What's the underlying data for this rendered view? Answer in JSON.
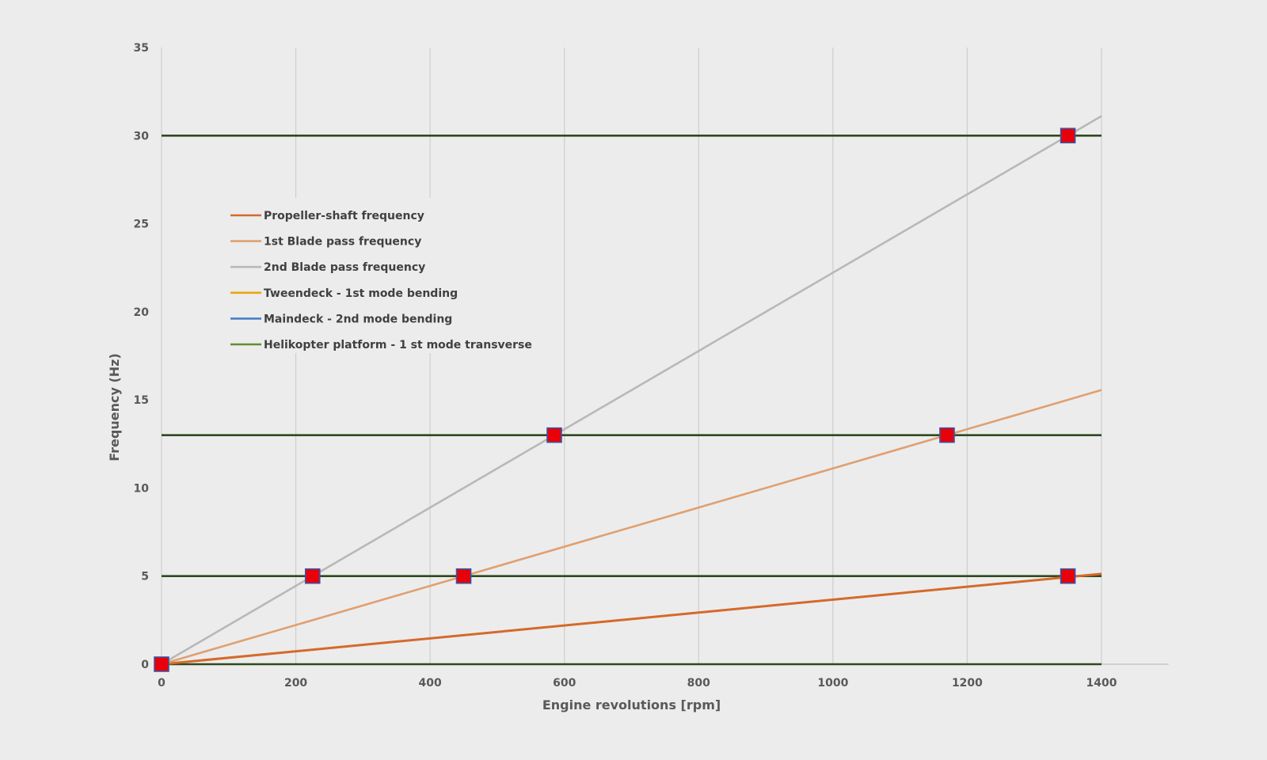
{
  "chart_data": {
    "type": "line",
    "title": "",
    "xlabel": "Engine revolutions [rpm]",
    "ylabel": "Frequency (Hz)",
    "xlim": [
      0,
      1400
    ],
    "xaxis_line_max": 1500,
    "ylim": [
      0,
      35
    ],
    "xticks": [
      0,
      200,
      400,
      600,
      800,
      1000,
      1200,
      1400
    ],
    "yticks": [
      0,
      5,
      10,
      15,
      20,
      25,
      30,
      35
    ],
    "grid": "vertical",
    "legend_position": "upper-left",
    "series": [
      {
        "name": "Propeller-shaft frequency",
        "color": "#d46a2a",
        "x": [
          0,
          1400
        ],
        "y": [
          0,
          5.13
        ]
      },
      {
        "name": "1st Blade pass frequency",
        "color": "#e0a070",
        "x": [
          0,
          1400
        ],
        "y": [
          0,
          15.56
        ]
      },
      {
        "name": "2nd Blade pass frequency",
        "color": "#b8b8b8",
        "x": [
          0,
          1400
        ],
        "y": [
          0,
          31.11
        ]
      },
      {
        "name": "Tweendeck  - 1st mode bending",
        "color": "#e8a810",
        "x": [
          0,
          1400
        ],
        "y": [
          5,
          5
        ]
      },
      {
        "name": "Maindeck - 2nd mode bending",
        "color": "#4a7fc8",
        "x": [
          0,
          1400
        ],
        "y": [
          13,
          13
        ]
      },
      {
        "name": "Helikopter platform - 1 st mode transverse",
        "color": "#5f8f30",
        "x": [
          0,
          1400
        ],
        "y": [
          30,
          30
        ]
      }
    ],
    "horizontal_lines": {
      "color": "#2e4a1e",
      "values": [
        0,
        5,
        13,
        30
      ]
    },
    "markers": {
      "color": "#e8000b",
      "edge_color": "#3a55a0",
      "points": [
        {
          "x": 0,
          "y": 0
        },
        {
          "x": 225,
          "y": 5
        },
        {
          "x": 450,
          "y": 5
        },
        {
          "x": 585,
          "y": 13
        },
        {
          "x": 1170,
          "y": 13
        },
        {
          "x": 1350,
          "y": 30
        },
        {
          "x": 1350,
          "y": 5
        }
      ]
    }
  }
}
